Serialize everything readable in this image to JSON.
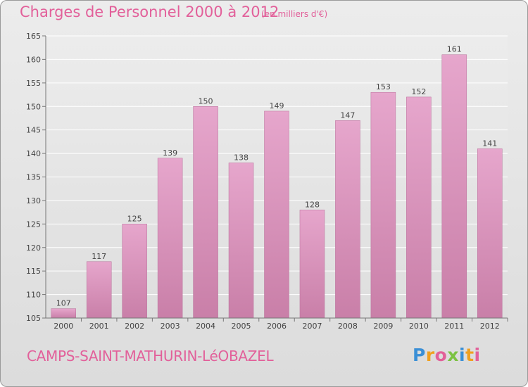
{
  "header": {
    "title": "Charges de Personnel 2000 à 2012",
    "subtitle": "(en milliers d'€)"
  },
  "footer": {
    "commune": "CAMPS-SAINT-MATHURIN-LéOBAZEL",
    "logo_letters": [
      "P",
      "r",
      "o",
      "x",
      "i",
      "t",
      "i"
    ],
    "logo_colors": [
      "#3a8fd6",
      "#f0a020",
      "#e2609a",
      "#7cc242",
      "#3a8fd6",
      "#f0a020",
      "#e2609a"
    ]
  },
  "colors": {
    "bar": "#c97fa8",
    "bar_light": "#e6a6cc",
    "grid": "#ffffff",
    "axis": "#777777"
  },
  "chart_data": {
    "type": "bar",
    "categories": [
      "2000",
      "2001",
      "2002",
      "2003",
      "2004",
      "2005",
      "2006",
      "2007",
      "2008",
      "2009",
      "2010",
      "2011",
      "2012"
    ],
    "values": [
      107,
      117,
      125,
      139,
      150,
      138,
      149,
      128,
      147,
      153,
      152,
      161,
      141
    ],
    "title": "Charges de Personnel 2000 à 2012",
    "subtitle": "(en milliers d'€)",
    "xlabel": "",
    "ylabel": "",
    "ylim": [
      105,
      165
    ],
    "yticks": [
      105,
      110,
      115,
      120,
      125,
      130,
      135,
      140,
      145,
      150,
      155,
      160,
      165
    ],
    "grid": true,
    "legend": "none",
    "data_labels": true
  }
}
